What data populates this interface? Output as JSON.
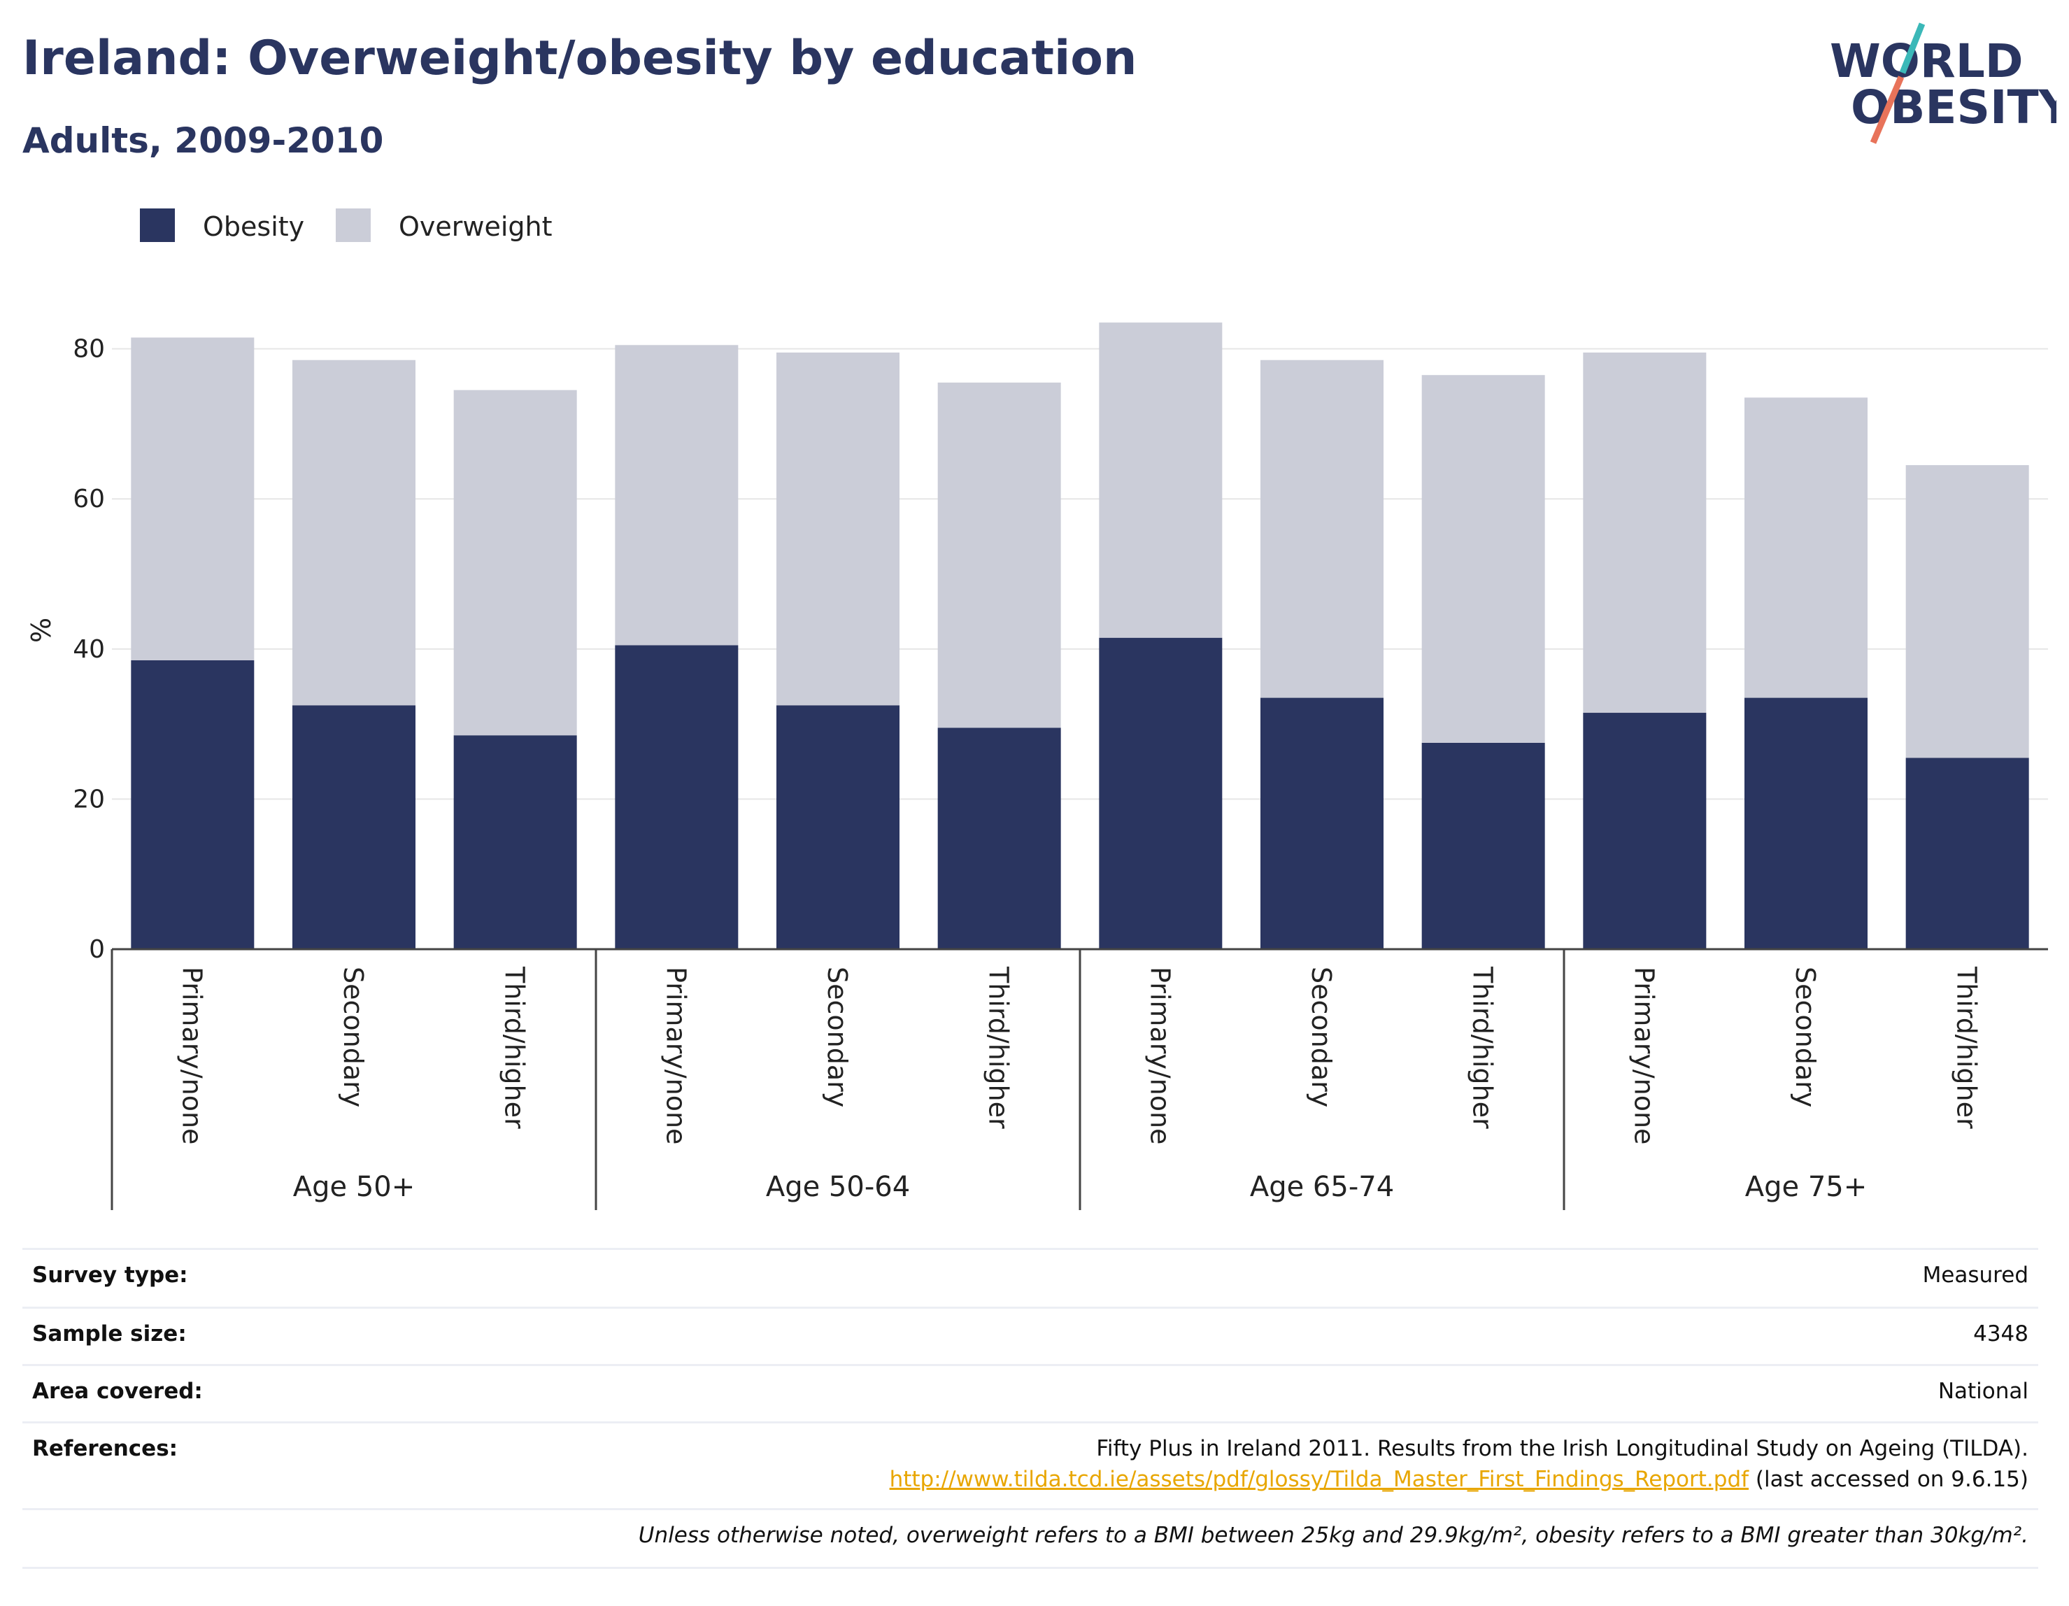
{
  "header": {
    "title": "Ireland: Overweight/obesity by education",
    "subtitle": "Adults, 2009-2010"
  },
  "logo": {
    "line1": "WORLD",
    "line2": "OBESITY",
    "colors": {
      "text": "#2a3560",
      "slash_teal": "#3bb8b8",
      "slash_coral": "#e8735a"
    }
  },
  "colors": {
    "obesity": "#2a3560",
    "overweight": "#cbcdd8",
    "gridline": "#e6e6e6",
    "axis": "#444444"
  },
  "chart_data": {
    "type": "bar",
    "stacked": true,
    "ylabel": "%",
    "ylim": [
      0,
      85
    ],
    "yticks": [
      0,
      20,
      40,
      60,
      80
    ],
    "grid": true,
    "legend_position": "top-left",
    "categories": [
      "Primary/none",
      "Secondary",
      "Third/higher",
      "Primary/none",
      "Secondary",
      "Third/higher",
      "Primary/none",
      "Secondary",
      "Third/higher",
      "Primary/none",
      "Secondary",
      "Third/higher"
    ],
    "groups": [
      {
        "label": "Age 50+",
        "size": 3
      },
      {
        "label": "Age 50-64",
        "size": 3
      },
      {
        "label": "Age 65-74",
        "size": 3
      },
      {
        "label": "Age 75+",
        "size": 3
      }
    ],
    "series": [
      {
        "name": "Obesity",
        "values": [
          38.5,
          32.5,
          28.5,
          40.5,
          32.5,
          29.5,
          41.5,
          33.5,
          27.5,
          31.5,
          33.5,
          25.5
        ]
      },
      {
        "name": "Overweight",
        "values": [
          43.0,
          46.0,
          46.0,
          40.0,
          47.0,
          46.0,
          42.0,
          45.0,
          49.0,
          48.0,
          40.0,
          39.0
        ]
      }
    ]
  },
  "info": {
    "survey_type_label": "Survey type:",
    "survey_type_value": "Measured",
    "sample_size_label": "Sample size:",
    "sample_size_value": "4348",
    "area_label": "Area covered:",
    "area_value": "National",
    "references_label": "References:",
    "reference_text": "Fifty Plus in Ireland 2011. Results from the Irish Longitudinal Study on Ageing (TILDA).",
    "reference_link": "http://www.tilda.tcd.ie/assets/pdf/glossy/Tilda_Master_First_Findings_Report.pdf",
    "reference_accessed": "(last accessed on 9.6.15)",
    "footnote": "Unless otherwise noted, overweight refers to a BMI between 25kg and 29.9kg/m², obesity refers to a BMI greater than 30kg/m²."
  }
}
